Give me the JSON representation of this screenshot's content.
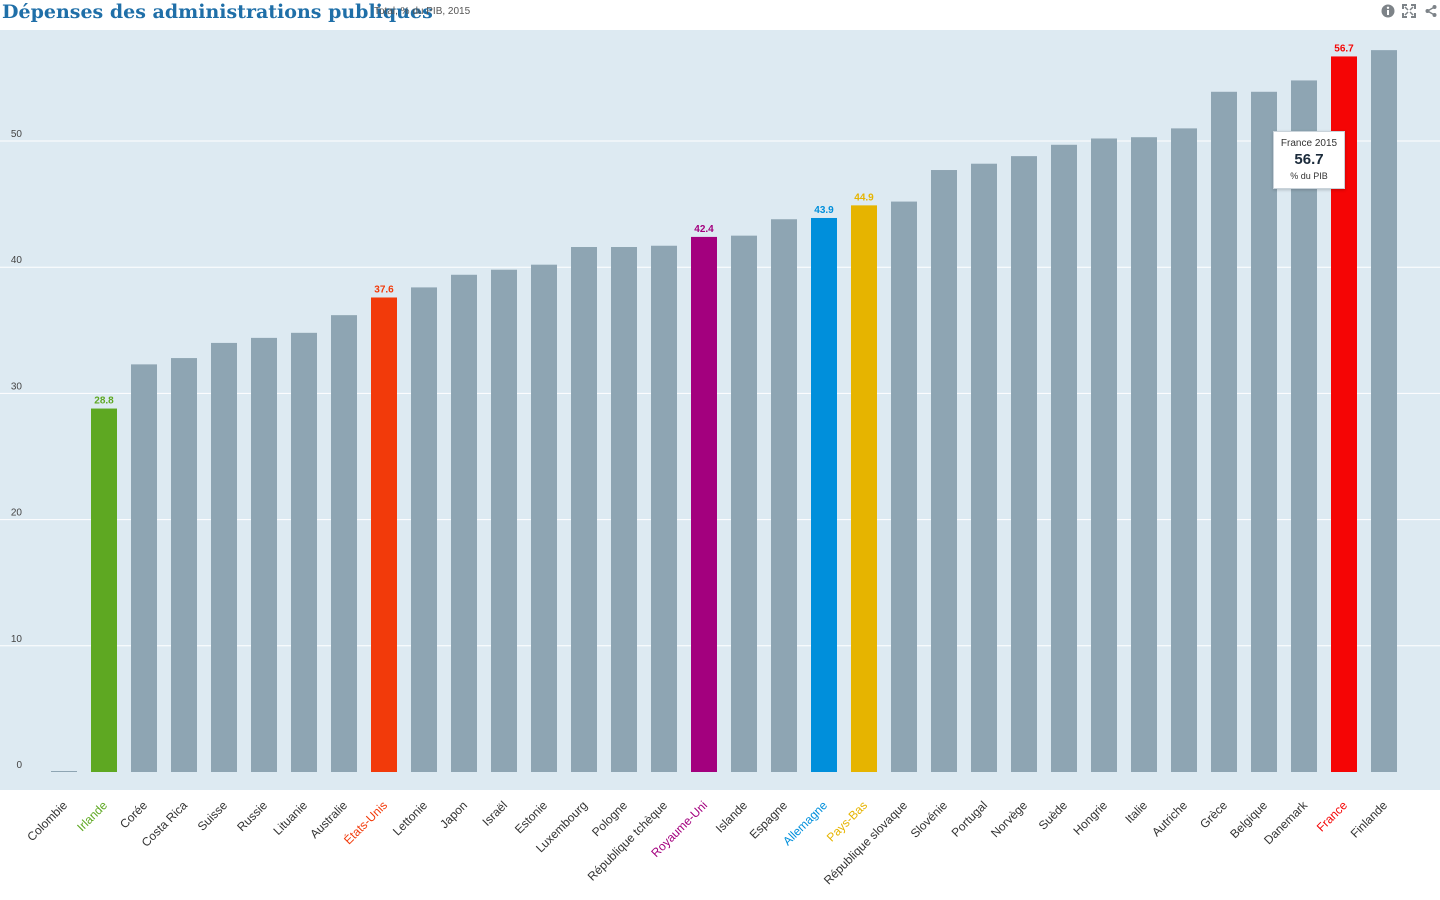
{
  "header": {
    "title": "Dépenses des administrations publiques",
    "subtitle": "Total, % du PIB, 2015",
    "icons": [
      "info-icon",
      "fullscreen-icon",
      "share-icon"
    ]
  },
  "colors": {
    "plot_background": "#ddeaf2",
    "default_bar": "#8ea5b3",
    "gridline": "#ffffff"
  },
  "tooltip": {
    "title": "France 2015",
    "value": "56.7",
    "unit": "% du PIB"
  },
  "chart_data": {
    "type": "bar",
    "title": "Dépenses des administrations publiques",
    "subtitle": "Total, % du PIB, 2015",
    "xlabel": "",
    "ylabel": "",
    "ylim": [
      0,
      60
    ],
    "yticks": [
      0,
      10,
      20,
      30,
      40,
      50
    ],
    "grid": true,
    "categories": [
      "Colombie",
      "Irlande",
      "Corée",
      "Costa Rica",
      "Suisse",
      "Russie",
      "Lituanie",
      "Australie",
      "États-Unis",
      "Lettonie",
      "Japon",
      "Israël",
      "Estonie",
      "Luxembourg",
      "Pologne",
      "République tchèque",
      "Royaume-Uni",
      "Islande",
      "Espagne",
      "Allemagne",
      "Pays-Bas",
      "République slovaque",
      "Slovénie",
      "Portugal",
      "Norvège",
      "Suède",
      "Hongrie",
      "Italie",
      "Autriche",
      "Grèce",
      "Belgique",
      "Danemark",
      "France",
      "Finlande"
    ],
    "values": [
      0,
      28.8,
      32.3,
      32.8,
      34.0,
      34.4,
      34.8,
      36.2,
      37.6,
      38.4,
      39.4,
      39.8,
      40.2,
      41.6,
      41.6,
      41.7,
      42.4,
      42.5,
      43.8,
      43.9,
      44.9,
      45.2,
      47.7,
      48.2,
      48.8,
      49.7,
      50.2,
      50.3,
      51.0,
      53.9,
      53.9,
      54.8,
      56.7,
      57.2
    ],
    "highlights": [
      {
        "category": "Irlande",
        "color": "#5ea822",
        "label": "28.8"
      },
      {
        "category": "États-Unis",
        "color": "#f23a0a",
        "label": "37.6"
      },
      {
        "category": "Royaume-Uni",
        "color": "#a3007e",
        "label": "42.4"
      },
      {
        "category": "Allemagne",
        "color": "#008fdb",
        "label": "43.9"
      },
      {
        "category": "Pays-Bas",
        "color": "#e6b400",
        "label": "44.9"
      },
      {
        "category": "France",
        "color": "#f50505",
        "label": "56.7"
      }
    ]
  }
}
